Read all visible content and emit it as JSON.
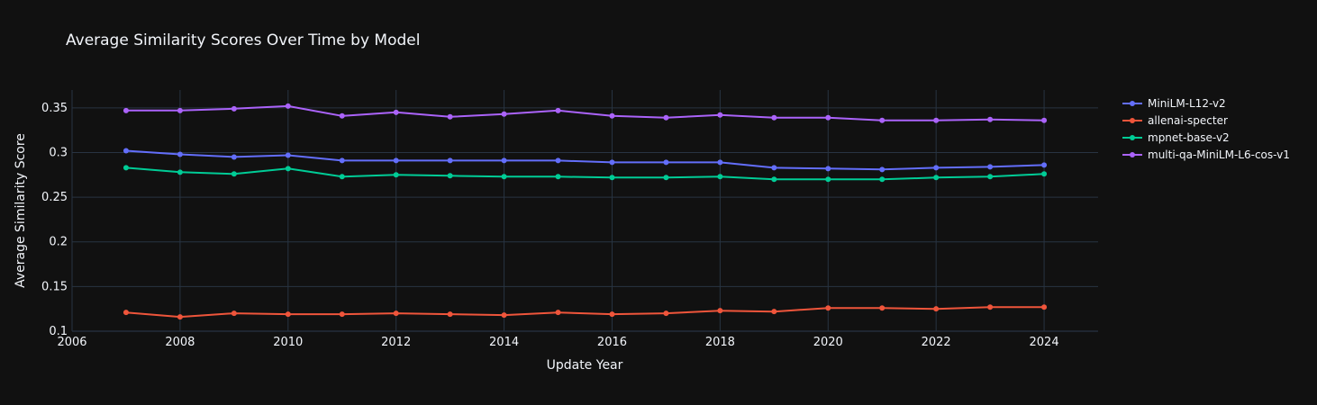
{
  "chart_data": {
    "type": "line",
    "title": "Average Similarity Scores Over Time by Model",
    "xlabel": "Update Year",
    "ylabel": "Average Similarity Score",
    "xlim": [
      2006,
      2025
    ],
    "ylim": [
      0.1,
      0.37
    ],
    "xticks": [
      2006,
      2008,
      2010,
      2012,
      2014,
      2016,
      2018,
      2020,
      2022,
      2024
    ],
    "yticks": [
      0.1,
      0.15,
      0.2,
      0.25,
      0.3,
      0.35
    ],
    "ytick_labels": [
      "0.1",
      "0.15",
      "0.2",
      "0.25",
      "0.3",
      "0.35"
    ],
    "grid": true,
    "legend_position": "top-right",
    "x": [
      2007,
      2008,
      2009,
      2010,
      2011,
      2012,
      2013,
      2014,
      2015,
      2016,
      2017,
      2018,
      2019,
      2020,
      2021,
      2022,
      2023,
      2024
    ],
    "series": [
      {
        "name": "MiniLM-L12-v2",
        "color": "#636efa",
        "values": [
          0.302,
          0.298,
          0.295,
          0.297,
          0.291,
          0.291,
          0.291,
          0.291,
          0.291,
          0.289,
          0.289,
          0.289,
          0.283,
          0.282,
          0.281,
          0.283,
          0.284,
          0.286
        ]
      },
      {
        "name": "allenai-specter",
        "color": "#ef553b",
        "values": [
          0.121,
          0.116,
          0.12,
          0.119,
          0.119,
          0.12,
          0.119,
          0.118,
          0.121,
          0.119,
          0.12,
          0.123,
          0.122,
          0.126,
          0.126,
          0.125,
          0.127,
          0.127
        ]
      },
      {
        "name": "mpnet-base-v2",
        "color": "#00cc96",
        "values": [
          0.283,
          0.278,
          0.276,
          0.282,
          0.273,
          0.275,
          0.274,
          0.273,
          0.273,
          0.272,
          0.272,
          0.273,
          0.27,
          0.27,
          0.27,
          0.272,
          0.273,
          0.276
        ]
      },
      {
        "name": "multi-qa-MiniLM-L6-cos-v1",
        "color": "#ab63fa",
        "values": [
          0.347,
          0.347,
          0.349,
          0.352,
          0.341,
          0.345,
          0.34,
          0.343,
          0.347,
          0.341,
          0.339,
          0.342,
          0.339,
          0.339,
          0.336,
          0.336,
          0.337,
          0.336
        ]
      }
    ]
  }
}
